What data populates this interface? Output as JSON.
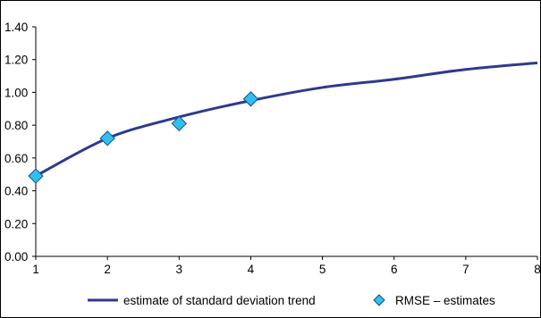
{
  "colors": {
    "trend": "#2e3a8c",
    "marker_fill": "#2fc0f0",
    "marker_stroke": "#1a4a8a",
    "axis": "#000000"
  },
  "chart_data": {
    "type": "line",
    "title": "",
    "xlabel": "",
    "ylabel": "",
    "xlim": [
      1,
      8
    ],
    "ylim": [
      0,
      1.4
    ],
    "x_ticks": [
      "1",
      "2",
      "3",
      "4",
      "5",
      "6",
      "7",
      "8"
    ],
    "y_ticks": [
      "0.00",
      "0.20",
      "0.40",
      "0.60",
      "0.80",
      "1.00",
      "1.20",
      "1.40"
    ],
    "grid": false,
    "legend_position": "bottom",
    "series": [
      {
        "name": "estimate of standard deviation trend",
        "kind": "line",
        "x": [
          1,
          2,
          3,
          4,
          5,
          6,
          7,
          8
        ],
        "y": [
          0.49,
          0.72,
          0.85,
          0.95,
          1.03,
          1.08,
          1.14,
          1.18
        ]
      },
      {
        "name": "RMSE – estimates",
        "kind": "markers",
        "marker": "diamond",
        "x": [
          1,
          2,
          3,
          4
        ],
        "y": [
          0.49,
          0.72,
          0.81,
          0.96
        ]
      }
    ]
  }
}
